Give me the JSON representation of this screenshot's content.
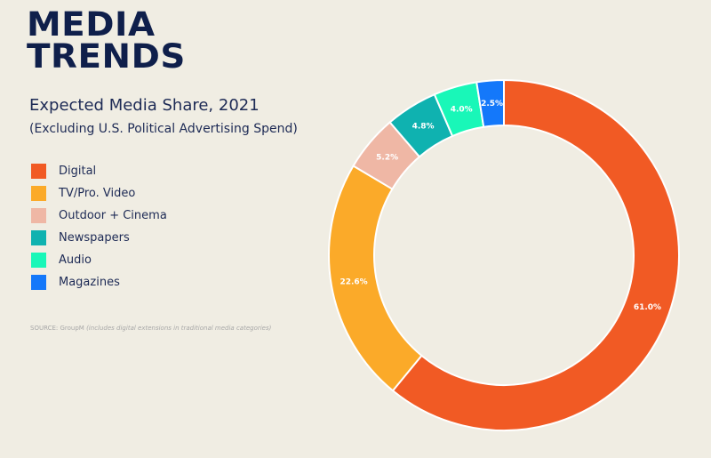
{
  "brand": {
    "line1": "MEDIA",
    "line2": "TRENDS"
  },
  "source": {
    "prefix": "SOURCE: GroupM",
    "note": "(includes digital extensions in traditional media categories)"
  },
  "chart_data": {
    "type": "pie",
    "donut": true,
    "title": "Expected Media Share, 2021",
    "subtitle": "(Excluding U.S. Political Advertising Spend)",
    "legend_position": "left",
    "categories": [
      "Digital",
      "TV/Pro. Video",
      "Outdoor + Cinema",
      "Newspapers",
      "Audio",
      "Magazines"
    ],
    "values": [
      61.0,
      22.6,
      5.2,
      4.8,
      4.0,
      2.5
    ],
    "labels": [
      "61.0%",
      "22.6%",
      "5.2%",
      "4.8%",
      "4.0%",
      "2.5%"
    ],
    "colors": [
      "#f15a24",
      "#fbaa29",
      "#efb7a5",
      "#0fb2b0",
      "#19f7b8",
      "#1478fa"
    ]
  }
}
